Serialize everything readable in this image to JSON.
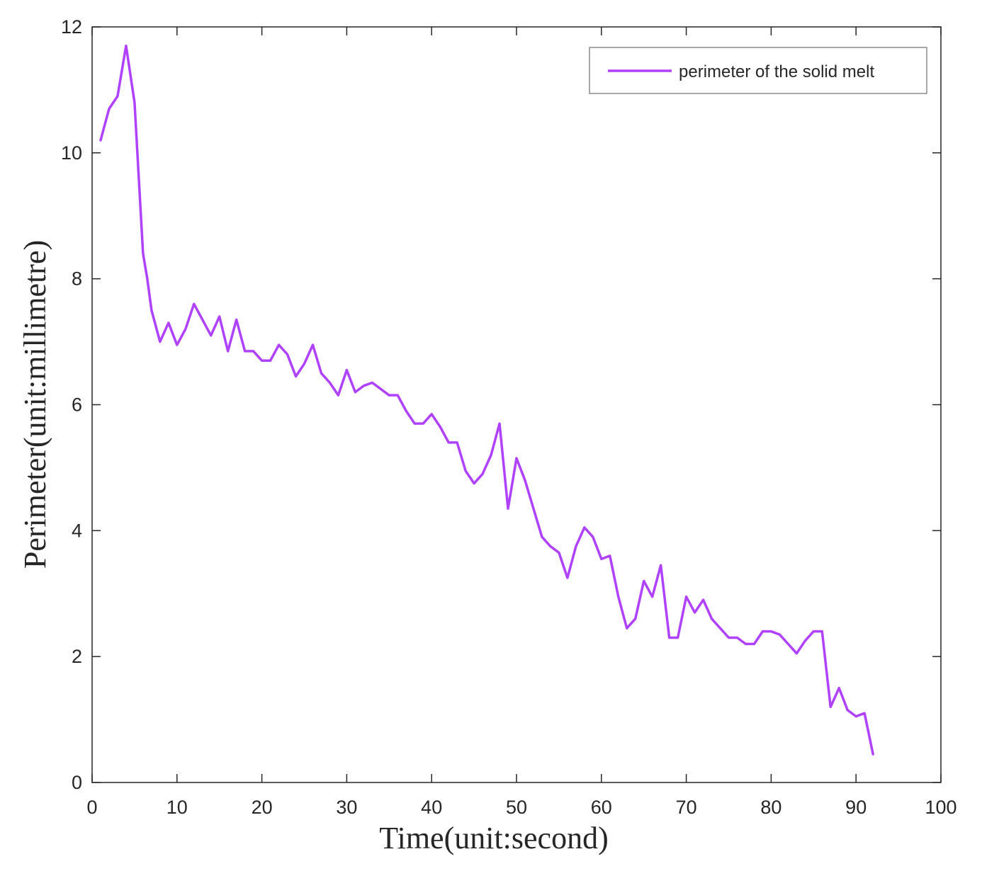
{
  "colors": {
    "series": "#b042ff",
    "axis": "#262626",
    "background": "#ffffff"
  },
  "chart_data": {
    "type": "line",
    "title": "",
    "xlabel": "Time(unit:second)",
    "ylabel": "Perimeter(unit:millimetre)",
    "xlim": [
      0,
      100
    ],
    "ylim": [
      0,
      12
    ],
    "xticks": [
      0,
      10,
      20,
      30,
      40,
      50,
      60,
      70,
      80,
      90,
      100
    ],
    "yticks": [
      0,
      2,
      4,
      6,
      8,
      10,
      12
    ],
    "xtick_labels": [
      "0",
      "10",
      "20",
      "30",
      "40",
      "50",
      "60",
      "70",
      "80",
      "90",
      "100"
    ],
    "ytick_labels": [
      "0",
      "2",
      "4",
      "6",
      "8",
      "10",
      "12"
    ],
    "grid": false,
    "legend_position": "top-right",
    "series": [
      {
        "name": "perimeter of the solid melt",
        "color": "#b042ff",
        "x": [
          1,
          2,
          3,
          4,
          5,
          6,
          6.5,
          7,
          8,
          9,
          10,
          11,
          12,
          13,
          14,
          15,
          16,
          17,
          18,
          19,
          20,
          21,
          22,
          23,
          24,
          25,
          26,
          27,
          28,
          29,
          30,
          31,
          32,
          33,
          34,
          35,
          36,
          37,
          38,
          39,
          40,
          41,
          42,
          43,
          44,
          45,
          46,
          47,
          48,
          49,
          50,
          51,
          52,
          53,
          54,
          55,
          56,
          57,
          58,
          59,
          60,
          61,
          62,
          63,
          64,
          65,
          66,
          67,
          68,
          69,
          70,
          71,
          72,
          73,
          74,
          75,
          76,
          77,
          78,
          79,
          80,
          81,
          82,
          83,
          84,
          85,
          86,
          87,
          88,
          89,
          90,
          91,
          92
        ],
        "y": [
          10.2,
          10.7,
          10.9,
          11.7,
          10.8,
          8.4,
          8.0,
          7.5,
          7.0,
          7.3,
          6.95,
          7.2,
          7.6,
          7.35,
          7.1,
          7.4,
          6.85,
          7.35,
          6.85,
          6.85,
          6.7,
          6.7,
          6.95,
          6.8,
          6.45,
          6.65,
          6.95,
          6.5,
          6.35,
          6.15,
          6.55,
          6.2,
          6.3,
          6.35,
          6.25,
          6.15,
          6.15,
          5.9,
          5.7,
          5.7,
          5.85,
          5.65,
          5.4,
          5.4,
          4.95,
          4.75,
          4.9,
          5.2,
          5.7,
          4.35,
          5.15,
          4.8,
          4.35,
          3.9,
          3.75,
          3.65,
          3.25,
          3.75,
          4.05,
          3.9,
          3.55,
          3.6,
          2.95,
          2.45,
          2.6,
          3.2,
          2.95,
          3.45,
          2.3,
          2.3,
          2.95,
          2.7,
          2.9,
          2.6,
          2.45,
          2.3,
          2.3,
          2.2,
          2.2,
          2.4,
          2.4,
          2.35,
          2.2,
          2.05,
          2.25,
          2.4,
          2.4,
          1.2,
          1.5,
          1.15,
          1.05,
          1.1,
          0.45
        ]
      }
    ]
  }
}
